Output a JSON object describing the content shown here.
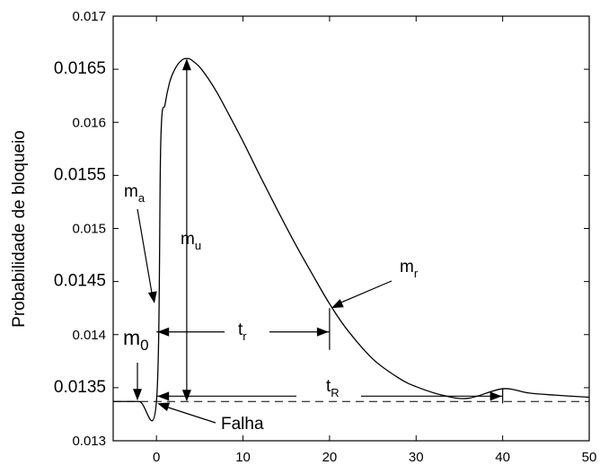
{
  "chart_data": {
    "type": "line",
    "ylabel": "Probabilidade de bloqueio",
    "xlim": [
      -5,
      50
    ],
    "ylim": [
      0.013,
      0.017
    ],
    "x_ticks": [
      {
        "value": 0,
        "label": "0"
      },
      {
        "value": 10,
        "label": "10"
      },
      {
        "value": 20,
        "label": "20"
      },
      {
        "value": 30,
        "label": "30"
      },
      {
        "value": 40,
        "label": "40"
      },
      {
        "value": 50,
        "label": "50"
      }
    ],
    "y_ticks": [
      {
        "value": 0.013,
        "label": "0.013",
        "large": false
      },
      {
        "value": 0.0135,
        "label": "0.0135",
        "large": true
      },
      {
        "value": 0.014,
        "label": "0.014",
        "large": false
      },
      {
        "value": 0.0145,
        "label": "0.0145",
        "large": true
      },
      {
        "value": 0.015,
        "label": "0.015",
        "large": false
      },
      {
        "value": 0.0155,
        "label": "0.0155",
        "large": true
      },
      {
        "value": 0.016,
        "label": "0.016",
        "large": false
      },
      {
        "value": 0.0165,
        "label": "0.0165",
        "large": true
      },
      {
        "value": 0.017,
        "label": "0.017",
        "large": false
      }
    ],
    "grid": false,
    "series": [
      {
        "x": [
          -5,
          -2,
          0,
          0.5,
          1.0,
          1.5,
          2.0,
          2.5,
          3.0,
          3.3,
          3.7,
          4.0,
          5.0,
          6.0,
          7.0,
          8.0,
          10.0,
          12.0,
          14.0,
          16.0,
          18.0,
          20.0,
          22.0,
          25.0,
          28.0,
          30.0,
          33.0,
          36.0,
          40.0,
          43.0,
          46.0,
          50.0
        ],
        "y": [
          0.01337,
          0.01337,
          0.01337,
          0.01582,
          0.01617,
          0.01637,
          0.01648,
          0.01655,
          0.01659,
          0.0166,
          0.0166,
          0.01659,
          0.01652,
          0.01641,
          0.01628,
          0.01613,
          0.01582,
          0.01549,
          0.01517,
          0.01486,
          0.01457,
          0.01429,
          0.01405,
          0.01377,
          0.01359,
          0.01351,
          0.01343,
          0.0134,
          0.01349,
          0.01345,
          0.01343,
          0.01341
        ]
      }
    ],
    "baseline": 0.01337,
    "annotations": [
      {
        "label": "m",
        "sub": "a"
      },
      {
        "label": "m",
        "sub": "u"
      },
      {
        "label": "m",
        "sub": "r"
      },
      {
        "label": "m",
        "sub": "0"
      },
      {
        "label": "t",
        "sub": "r"
      },
      {
        "label": "t",
        "sub": "R"
      },
      {
        "label": "Falha",
        "sub": ""
      }
    ]
  }
}
